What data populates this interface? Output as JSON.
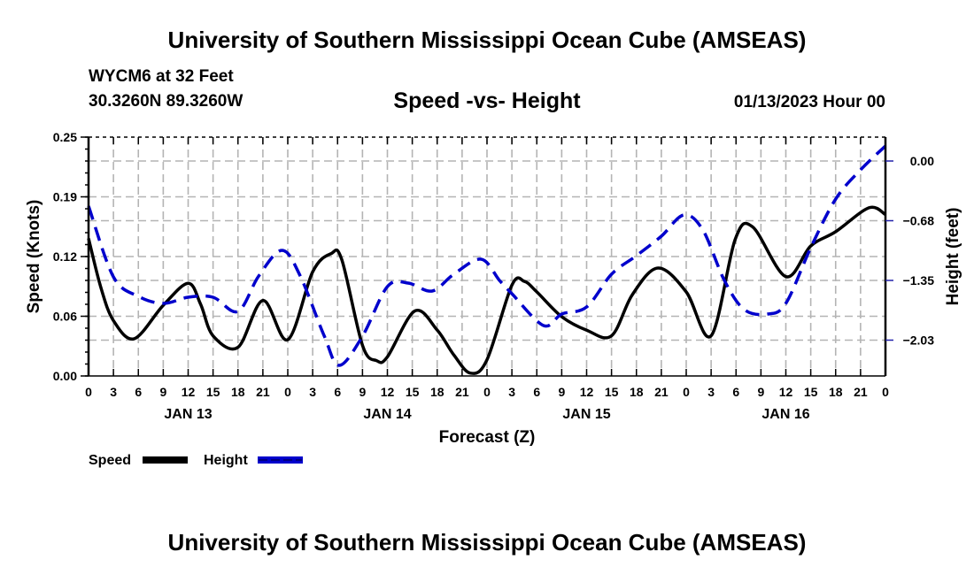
{
  "header": {
    "main_title": "University of Southern Mississippi Ocean Cube (AMSEAS)",
    "station": "WYCM6 at 32 Feet",
    "coords": "30.3260N  89.3260W",
    "subtitle": "Speed -vs- Height",
    "run_date": "01/13/2023 Hour 00"
  },
  "footer": {
    "title": "University of Southern Mississippi Ocean Cube (AMSEAS)"
  },
  "chart_data": {
    "type": "line",
    "title": "Speed -vs- Height",
    "xlabel": "Forecast (Z)",
    "ylabel": "Speed (Knots)",
    "y2label": "Height (feet)",
    "x_unit": "forecast hour",
    "xlim": [
      0,
      96
    ],
    "ylim": [
      0,
      0.25
    ],
    "y2lim": [
      -2.43,
      0.27
    ],
    "grid": true,
    "legend_position": "bottom-left",
    "x_tick_hours": [
      0,
      3,
      6,
      9,
      12,
      15,
      18,
      21,
      24,
      27,
      30,
      33,
      36,
      39,
      42,
      45,
      48,
      51,
      54,
      57,
      60,
      63,
      66,
      69,
      72,
      75,
      78,
      81,
      84,
      87,
      90,
      93,
      96
    ],
    "x_tick_labels": [
      "0",
      "3",
      "6",
      "9",
      "12",
      "15",
      "18",
      "21",
      "0",
      "3",
      "6",
      "9",
      "12",
      "15",
      "18",
      "21",
      "0",
      "3",
      "6",
      "9",
      "12",
      "15",
      "18",
      "21",
      "0",
      "3",
      "6",
      "9",
      "12",
      "15",
      "18",
      "21",
      "0"
    ],
    "day_labels": [
      {
        "label": "JAN 13",
        "hour": 12
      },
      {
        "label": "JAN 14",
        "hour": 36
      },
      {
        "label": "JAN 15",
        "hour": 60
      },
      {
        "label": "JAN 16",
        "hour": 84
      }
    ],
    "y_ticks": [
      {
        "value": 0.0,
        "label": "0.00"
      },
      {
        "value": 0.0625,
        "label": "0.06"
      },
      {
        "value": 0.125,
        "label": "0.12"
      },
      {
        "value": 0.1875,
        "label": "0.19"
      },
      {
        "value": 0.25,
        "label": "0.25"
      }
    ],
    "y2_ticks": [
      {
        "value": 0.0,
        "label": "0.00"
      },
      {
        "value": -0.675,
        "label": "-0.68"
      },
      {
        "value": -1.35,
        "label": "-1.35"
      },
      {
        "value": -2.025,
        "label": "-2.03"
      }
    ],
    "series": [
      {
        "name": "Speed",
        "axis": "left",
        "color": "#000000",
        "style": "solid",
        "x": [
          0,
          1.5,
          3,
          5.5,
          9,
          12,
          13.5,
          15,
          18,
          21,
          24,
          27,
          29.2,
          30.5,
          33,
          34.7,
          36,
          39.3,
          42,
          44,
          46,
          48,
          51,
          52.5,
          54,
          57,
          60,
          63,
          65.5,
          68.6,
          72,
          75,
          77.9,
          80,
          84,
          87,
          90,
          94,
          96
        ],
        "values": [
          0.144,
          0.092,
          0.058,
          0.039,
          0.074,
          0.097,
          0.075,
          0.042,
          0.03,
          0.079,
          0.038,
          0.109,
          0.128,
          0.122,
          0.032,
          0.016,
          0.02,
          0.068,
          0.048,
          0.022,
          0.003,
          0.017,
          0.095,
          0.099,
          0.088,
          0.062,
          0.048,
          0.042,
          0.085,
          0.113,
          0.088,
          0.042,
          0.143,
          0.156,
          0.104,
          0.136,
          0.151,
          0.176,
          0.169
        ]
      },
      {
        "name": "Height",
        "axis": "right",
        "color": "#0000cc",
        "style": "dashed",
        "x": [
          0,
          3,
          6,
          9,
          12,
          15,
          18,
          20.5,
          23.3,
          25.5,
          28.4,
          30.2,
          33,
          36,
          38.5,
          41.4,
          44,
          47.3,
          49.5,
          51,
          54.8,
          57,
          60,
          63,
          66,
          69,
          71.7,
          74,
          76.6,
          79,
          81.8,
          84,
          87,
          90,
          93,
          96
        ],
        "values": [
          -0.51,
          -1.31,
          -1.53,
          -1.61,
          -1.54,
          -1.54,
          -1.7,
          -1.3,
          -1.01,
          -1.3,
          -1.98,
          -2.31,
          -1.98,
          -1.42,
          -1.38,
          -1.47,
          -1.28,
          -1.11,
          -1.35,
          -1.5,
          -1.86,
          -1.73,
          -1.65,
          -1.28,
          -1.07,
          -0.85,
          -0.61,
          -0.78,
          -1.35,
          -1.68,
          -1.73,
          -1.61,
          -0.98,
          -0.43,
          -0.1,
          0.17
        ]
      }
    ]
  }
}
